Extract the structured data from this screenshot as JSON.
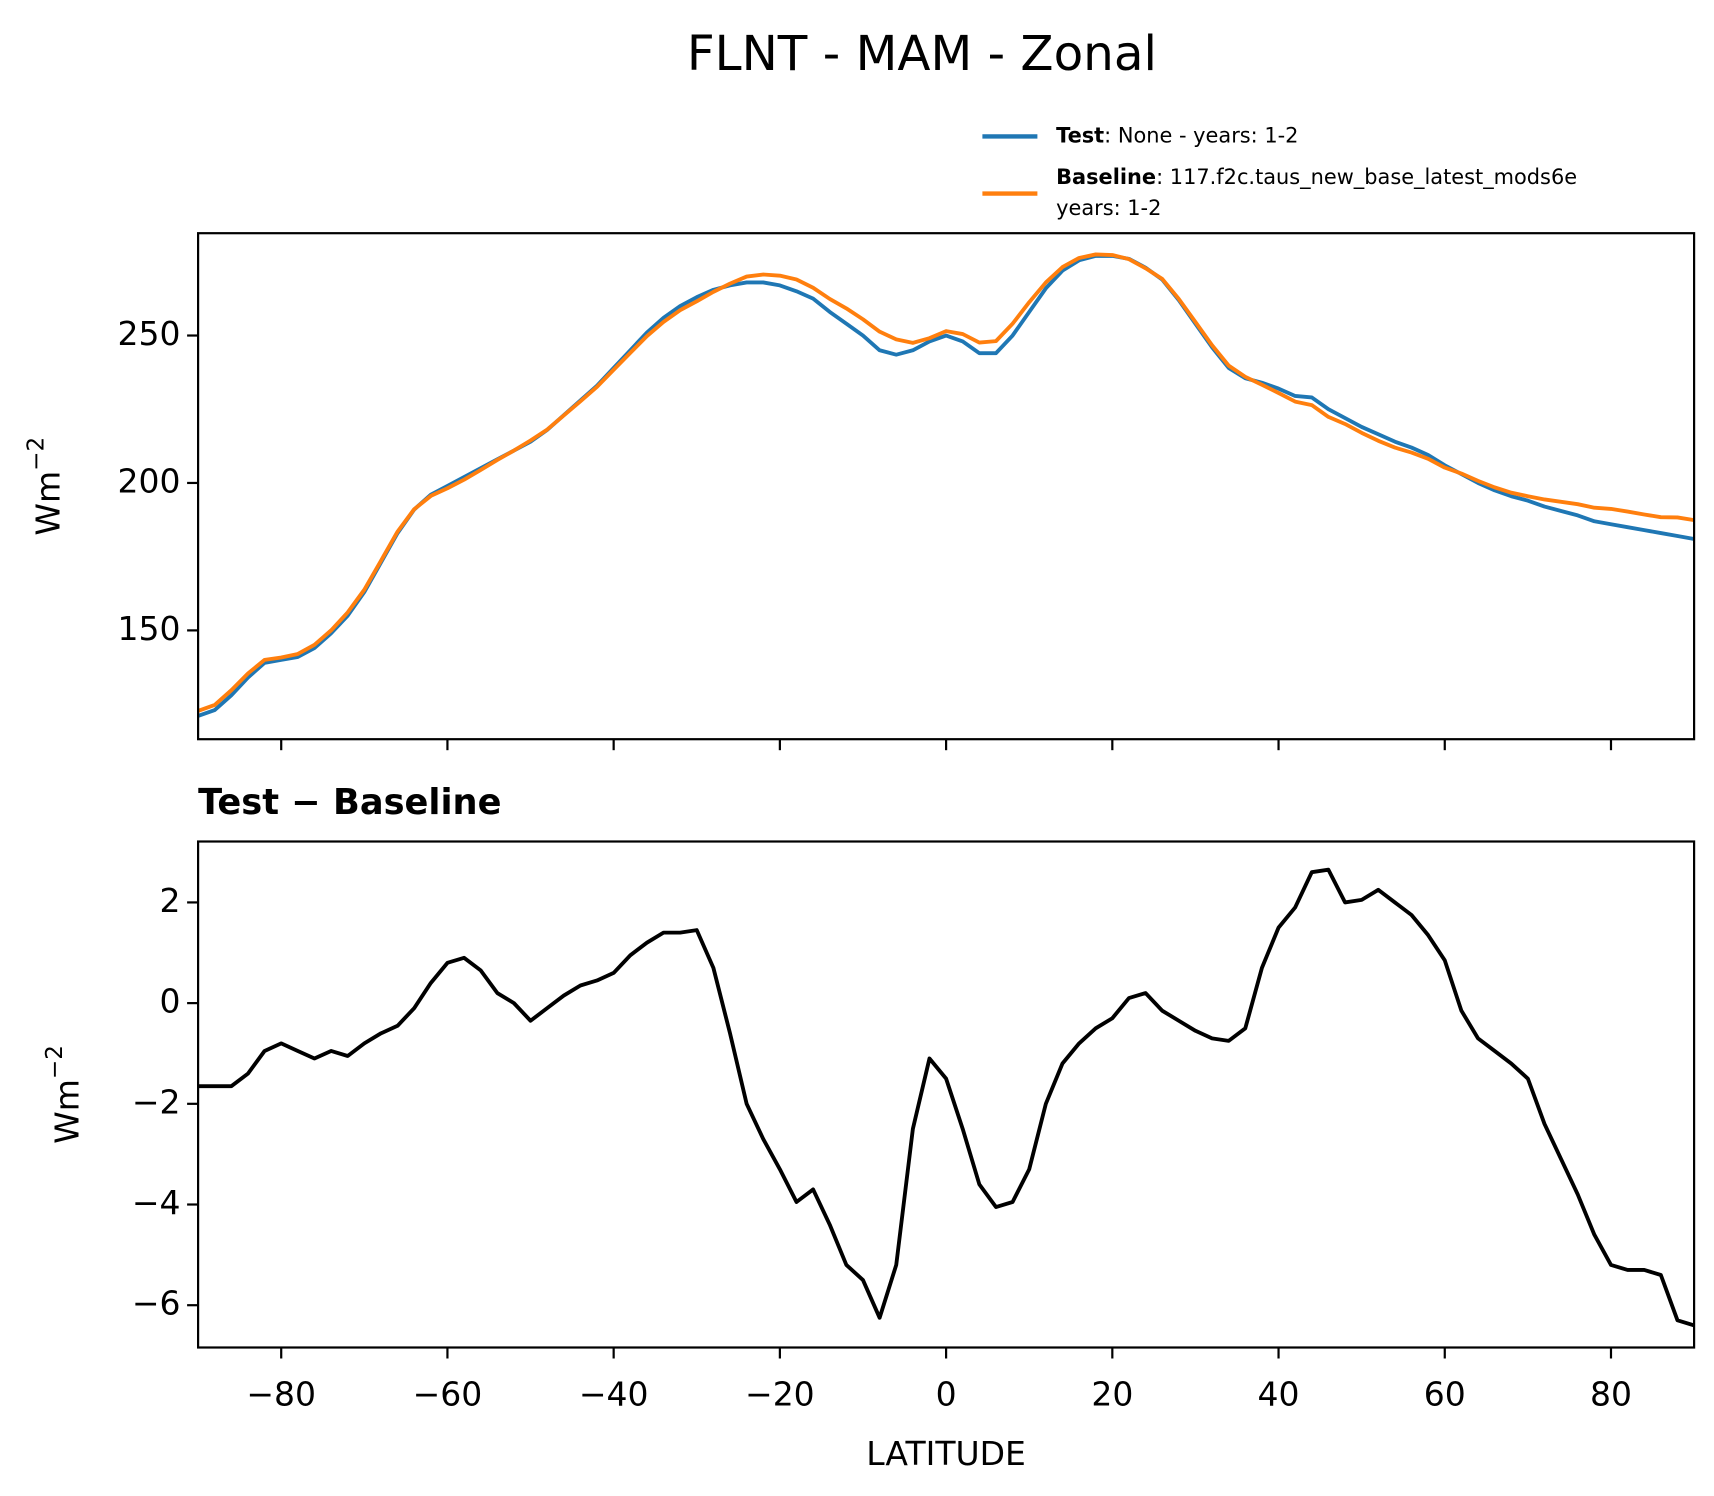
{
  "chart_data": [
    {
      "type": "line",
      "title": "FLNT - MAM - Zonal",
      "ylabel": "Wm",
      "ylabel_sup": "−2",
      "legend": "above-right",
      "x": [
        -90,
        -88,
        -86,
        -84,
        -82,
        -80,
        -78,
        -76,
        -74,
        -72,
        -70,
        -68,
        -66,
        -64,
        -62,
        -60,
        -58,
        -56,
        -54,
        -52,
        -50,
        -48,
        -46,
        -44,
        -42,
        -40,
        -38,
        -36,
        -34,
        -32,
        -30,
        -28,
        -26,
        -24,
        -22,
        -20,
        -18,
        -16,
        -14,
        -12,
        -10,
        -8,
        -6,
        -4,
        -2,
        0,
        2,
        4,
        6,
        8,
        10,
        12,
        14,
        16,
        18,
        20,
        22,
        24,
        26,
        28,
        30,
        32,
        34,
        36,
        38,
        40,
        42,
        44,
        46,
        48,
        50,
        52,
        54,
        56,
        58,
        60,
        62,
        64,
        66,
        68,
        70,
        72,
        74,
        76,
        78,
        80,
        82,
        84,
        86,
        88,
        90
      ],
      "series": [
        {
          "name": "Test",
          "detail": [
            ": None - years: 1-2"
          ],
          "color": "#1f77b4",
          "values": [
            121,
            123,
            128,
            134,
            139,
            140,
            141,
            144,
            149,
            155,
            163,
            173,
            183,
            191,
            196,
            199,
            202,
            205,
            208,
            211,
            214,
            218,
            223,
            228,
            233,
            239,
            245,
            251,
            256,
            260,
            263,
            265.5,
            267,
            268,
            268,
            267,
            265,
            262.5,
            258,
            254,
            250,
            245,
            243.5,
            245,
            248,
            250,
            248,
            244,
            244,
            250,
            258,
            266,
            272,
            275.5,
            277,
            277,
            276,
            273,
            269,
            262,
            254,
            246,
            239,
            235.5,
            234,
            232,
            229.5,
            229,
            225,
            222,
            219,
            216.5,
            214,
            212,
            209.5,
            206,
            203,
            200,
            197.5,
            195.5,
            194,
            192,
            190.5,
            189,
            187,
            186,
            185,
            184,
            183,
            182,
            181
          ]
        },
        {
          "name": "Baseline",
          "detail": [
            ": 117.f2c.taus_new_base_latest_mods6e",
            "years: 1-2"
          ],
          "color": "#ff7f0e",
          "values": [
            122.7,
            124.7,
            129.7,
            135.4,
            140,
            140.8,
            142,
            145.1,
            150,
            156.1,
            163.8,
            173.6,
            183.5,
            191.1,
            195.6,
            198.2,
            201.1,
            204.4,
            207.8,
            211,
            214.4,
            218.1,
            222.9,
            227.7,
            232.6,
            238.4,
            244.1,
            249.8,
            254.6,
            258.6,
            261.6,
            264.8,
            267.6,
            270,
            270.7,
            270.3,
            269,
            266.2,
            262.4,
            259.2,
            255.5,
            251.3,
            248.7,
            247.5,
            249.1,
            251.5,
            250.5,
            247.6,
            248.1,
            254,
            261.3,
            268,
            273.2,
            276.3,
            277.5,
            277.3,
            275.9,
            272.8,
            269.2,
            262.4,
            254.6,
            246.7,
            239.8,
            236,
            233.3,
            230.5,
            227.6,
            226.4,
            222.4,
            220,
            217,
            214.3,
            212,
            210.3,
            208.2,
            205.2,
            203.2,
            200.7,
            198.5,
            196.7,
            195.5,
            194.4,
            193.6,
            192.8,
            191.6,
            191.2,
            190.3,
            189.3,
            188.4,
            188.3,
            187.4
          ]
        }
      ],
      "xlim": [
        -90,
        90
      ],
      "xticks": [
        -80,
        -60,
        -40,
        -20,
        0,
        20,
        40,
        60,
        80
      ],
      "ylim": [
        113.1,
        284.7
      ],
      "yticks": [
        150,
        200,
        250
      ]
    },
    {
      "type": "line",
      "title": "Test − Baseline",
      "ylabel": "Wm",
      "ylabel_sup": "−2",
      "xlabel": "LATITUDE",
      "color": "#000000",
      "x": [
        -90,
        -88,
        -86,
        -84,
        -82,
        -80,
        -78,
        -76,
        -74,
        -72,
        -70,
        -68,
        -66,
        -64,
        -62,
        -60,
        -58,
        -56,
        -54,
        -52,
        -50,
        -48,
        -46,
        -44,
        -42,
        -40,
        -38,
        -36,
        -34,
        -32,
        -30,
        -28,
        -26,
        -24,
        -22,
        -20,
        -18,
        -16,
        -14,
        -12,
        -10,
        -8,
        -6,
        -4,
        -2,
        0,
        2,
        4,
        6,
        8,
        10,
        12,
        14,
        16,
        18,
        20,
        22,
        24,
        26,
        28,
        30,
        32,
        34,
        36,
        38,
        40,
        42,
        44,
        46,
        48,
        50,
        52,
        54,
        56,
        58,
        60,
        62,
        64,
        66,
        68,
        70,
        72,
        74,
        76,
        78,
        80,
        82,
        84,
        86,
        88,
        90
      ],
      "values": [
        -1.65,
        -1.65,
        -1.65,
        -1.4,
        -0.95,
        -0.8,
        -0.95,
        -1.1,
        -0.95,
        -1.05,
        -0.8,
        -0.6,
        -0.45,
        -0.1,
        0.4,
        0.8,
        0.9,
        0.65,
        0.2,
        0,
        -0.35,
        -0.1,
        0.15,
        0.35,
        0.45,
        0.6,
        0.95,
        1.2,
        1.4,
        1.4,
        1.45,
        0.7,
        -0.6,
        -2,
        -2.7,
        -3.3,
        -3.95,
        -3.7,
        -4.4,
        -5.2,
        -5.5,
        -6.25,
        -5.2,
        -2.5,
        -1.1,
        -1.5,
        -2.5,
        -3.6,
        -4.05,
        -3.95,
        -3.3,
        -2,
        -1.2,
        -0.8,
        -0.5,
        -0.3,
        0.1,
        0.2,
        -0.15,
        -0.35,
        -0.55,
        -0.7,
        -0.75,
        -0.5,
        0.7,
        1.5,
        1.9,
        2.6,
        2.65,
        2,
        2.05,
        2.25,
        2,
        1.75,
        1.35,
        0.85,
        -0.15,
        -0.7,
        -0.95,
        -1.2,
        -1.5,
        -2.4,
        -3.1,
        -3.8,
        -4.6,
        -5.2,
        -5.3,
        -5.3,
        -5.4,
        -6.3,
        -6.4
      ],
      "xlim": [
        -90,
        90
      ],
      "xticks": [
        {
          "value": -80,
          "label": "−80"
        },
        {
          "value": -60,
          "label": "−60"
        },
        {
          "value": -40,
          "label": "−40"
        },
        {
          "value": -20,
          "label": "−20"
        },
        0,
        20,
        40,
        60,
        80
      ],
      "ylim": [
        -6.84,
        3.21
      ],
      "yticks": [
        {
          "value": -6,
          "label": "−6"
        },
        {
          "value": -4,
          "label": "−4"
        },
        {
          "value": -2,
          "label": "−2"
        },
        0,
        2
      ]
    }
  ]
}
